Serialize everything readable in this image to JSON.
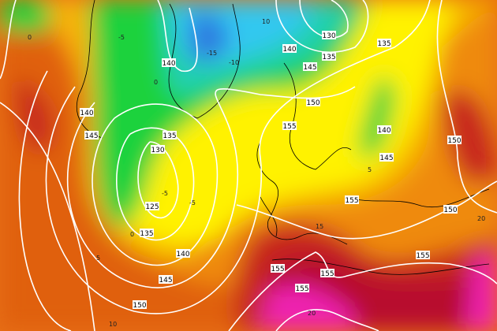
{
  "map": {
    "field_colors": {
      "deep_blue": "#2f7de0",
      "cyan": "#33c8f0",
      "teal": "#22d0b0",
      "green": "#1ed23c",
      "yellow_green": "#b8f020",
      "yellow": "#fff200",
      "light_orange": "#f7b400",
      "orange": "#ef8a0c",
      "dark_orange": "#e0600a",
      "red": "#c8281e",
      "crimson": "#b8102e",
      "magenta": "#ee20b0"
    },
    "contour_color": "#ffffff",
    "coastline_color": "#000000",
    "height_contour_labels": [
      "140",
      "130",
      "135",
      "140",
      "145",
      "150",
      "135",
      "140",
      "145",
      "155",
      "135",
      "130",
      "140",
      "145",
      "150",
      "125",
      "135",
      "140",
      "145",
      "150",
      "155",
      "150",
      "155",
      "155",
      "155",
      "155"
    ],
    "temperature_labels": [
      "-15",
      "-10",
      "-5",
      "0",
      "-5",
      "0",
      "5",
      "-5",
      "10",
      "0",
      "5",
      "10",
      "15",
      "20",
      "20"
    ]
  }
}
